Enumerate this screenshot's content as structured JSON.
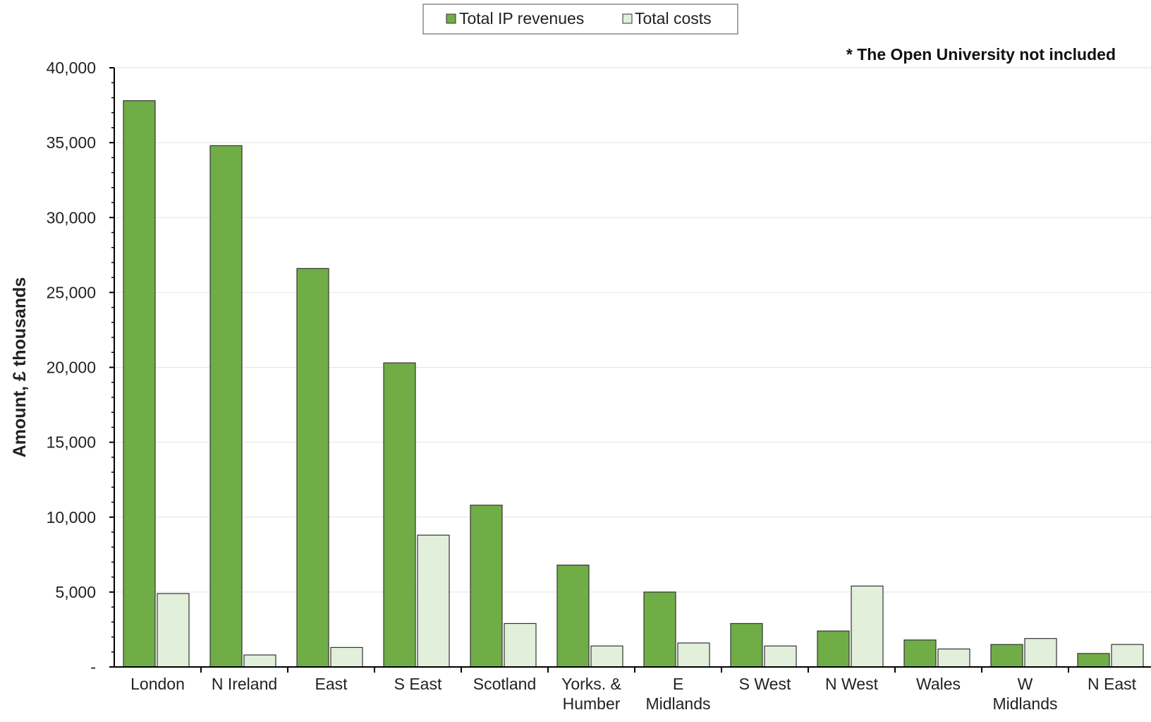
{
  "chart_data": {
    "type": "bar",
    "categories": [
      "London",
      "N Ireland",
      "East",
      "S East",
      "Scotland",
      "Yorks. & Humber",
      "E Midlands",
      "S West",
      "N West",
      "Wales",
      "W Midlands",
      "N East"
    ],
    "category_lines": [
      [
        "London"
      ],
      [
        "N Ireland"
      ],
      [
        "East"
      ],
      [
        "S East"
      ],
      [
        "Scotland"
      ],
      [
        "Yorks. &",
        "Humber"
      ],
      [
        "E",
        "Midlands"
      ],
      [
        "S West"
      ],
      [
        "N West"
      ],
      [
        "Wales"
      ],
      [
        "W",
        "Midlands"
      ],
      [
        "N East"
      ]
    ],
    "series": [
      {
        "name": "Total IP revenues",
        "color": "#70ad47",
        "values": [
          37800,
          34800,
          26600,
          20300,
          10800,
          6800,
          5000,
          2900,
          2400,
          1800,
          1500,
          900
        ]
      },
      {
        "name": "Total costs",
        "color": "#e2efda",
        "values": [
          4900,
          800,
          1300,
          8800,
          2900,
          1400,
          1600,
          1400,
          5400,
          1200,
          1900,
          1500
        ]
      }
    ],
    "ylabel": "Amount, £ thousands",
    "xlabel": "",
    "ylim": [
      0,
      40000
    ],
    "yticks": [
      0,
      5000,
      10000,
      15000,
      20000,
      25000,
      30000,
      35000,
      40000
    ],
    "ytick_labels": [
      "-",
      "5,000",
      "10,000",
      "15,000",
      "20,000",
      "25,000",
      "30,000",
      "35,000",
      "40,000"
    ],
    "annotation": "* The Open University not included",
    "grid": true,
    "legend_position": "top-center"
  }
}
